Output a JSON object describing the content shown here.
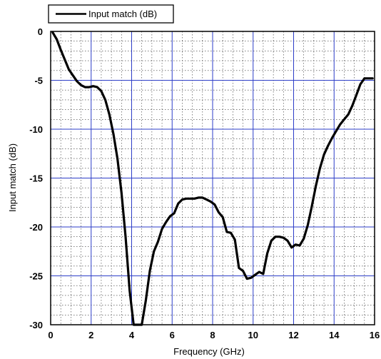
{
  "chart_data": {
    "type": "line",
    "title": "",
    "xlabel": "Frequency (GHz)",
    "ylabel": "Input match (dB)",
    "xlim": [
      0,
      16
    ],
    "ylim": [
      -30,
      0
    ],
    "x_ticks": [
      0,
      2,
      4,
      6,
      8,
      10,
      12,
      14,
      16
    ],
    "y_ticks": [
      0,
      -5,
      -10,
      -15,
      -20,
      -25,
      -30
    ],
    "x_tick_labels": [
      "0",
      "2",
      "4",
      "6",
      "8",
      "10",
      "12",
      "14",
      "16"
    ],
    "y_tick_labels": [
      "0",
      "-5",
      "-10",
      "-15",
      "-20",
      "-25",
      "-30"
    ],
    "grid": "major solid, minor dotted",
    "legend_position": "top-left, above plot",
    "series": [
      {
        "name": "Input match (dB)",
        "color": "#000000",
        "x": [
          0.1,
          0.3,
          0.5,
          0.7,
          0.9,
          1.1,
          1.3,
          1.5,
          1.7,
          1.9,
          2.1,
          2.3,
          2.5,
          2.7,
          2.9,
          3.1,
          3.3,
          3.5,
          3.7,
          3.9,
          4.1,
          4.3,
          4.5,
          4.7,
          4.9,
          5.1,
          5.3,
          5.5,
          5.7,
          5.9,
          6.1,
          6.3,
          6.5,
          6.7,
          6.9,
          7.1,
          7.3,
          7.5,
          7.7,
          7.9,
          8.1,
          8.3,
          8.5,
          8.7,
          8.9,
          9.1,
          9.3,
          9.5,
          9.7,
          9.9,
          10.1,
          10.3,
          10.5,
          10.7,
          10.9,
          11.1,
          11.3,
          11.5,
          11.7,
          11.9,
          12.1,
          12.3,
          12.5,
          12.7,
          12.9,
          13.1,
          13.3,
          13.5,
          13.7,
          13.9,
          14.1,
          14.3,
          14.5,
          14.7,
          14.9,
          15.1,
          15.3,
          15.5,
          15.7,
          15.9
        ],
        "values": [
          -0.1,
          -0.8,
          -1.9,
          -2.9,
          -3.9,
          -4.5,
          -5.1,
          -5.5,
          -5.7,
          -5.7,
          -5.6,
          -5.7,
          -6.1,
          -7.0,
          -8.5,
          -10.5,
          -13.0,
          -16.5,
          -21.0,
          -26.5,
          -30.0,
          -30.0,
          -30.0,
          -27.5,
          -24.5,
          -22.5,
          -21.5,
          -20.2,
          -19.5,
          -18.9,
          -18.6,
          -17.6,
          -17.2,
          -17.1,
          -17.1,
          -17.1,
          -17.0,
          -17.0,
          -17.2,
          -17.4,
          -17.7,
          -18.5,
          -19.0,
          -20.5,
          -20.6,
          -21.3,
          -24.2,
          -24.5,
          -25.3,
          -25.2,
          -24.9,
          -24.6,
          -24.8,
          -22.7,
          -21.4,
          -21.0,
          -21.0,
          -21.1,
          -21.4,
          -22.1,
          -21.8,
          -21.9,
          -21.2,
          -19.8,
          -17.9,
          -15.8,
          -14.0,
          -12.6,
          -11.7,
          -10.9,
          -10.2,
          -9.5,
          -9.0,
          -8.5,
          -7.6,
          -6.5,
          -5.4,
          -4.8,
          -4.8,
          -4.8
        ]
      }
    ]
  }
}
